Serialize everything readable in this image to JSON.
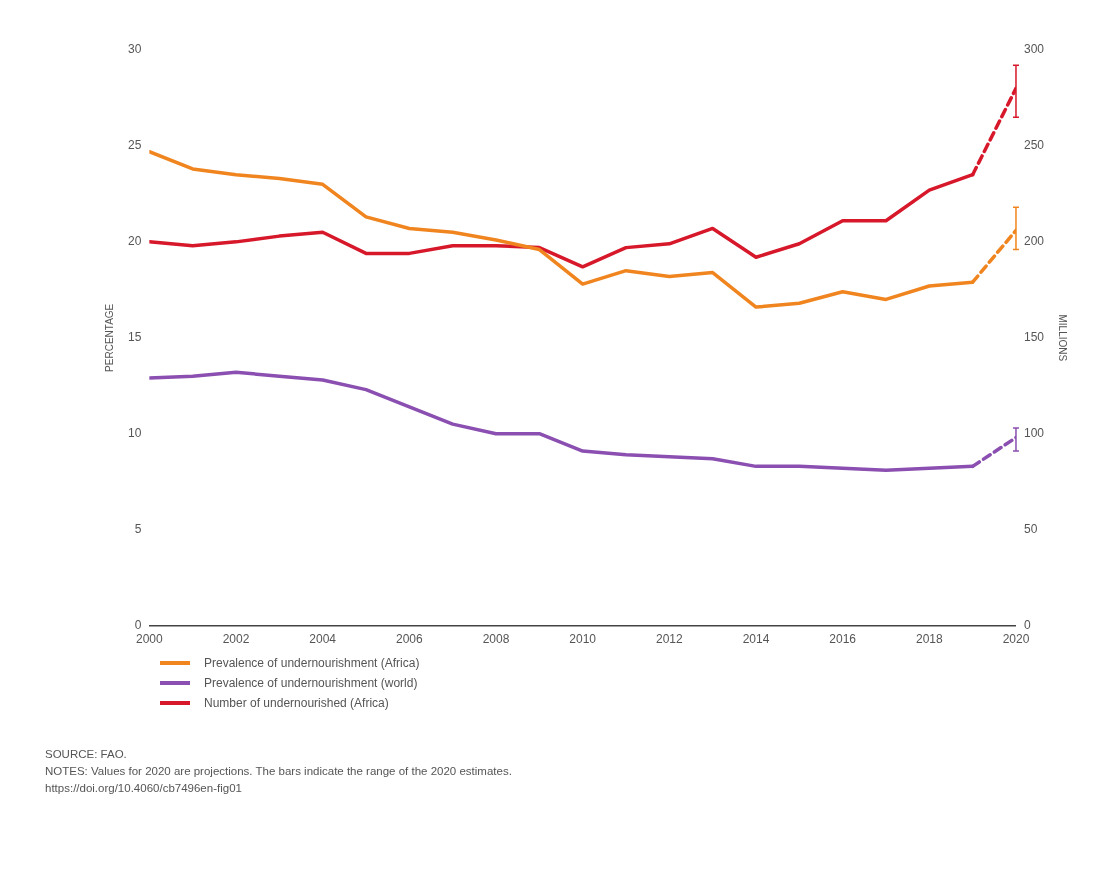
{
  "chart_data": {
    "type": "line",
    "ylabel": "PERCENTAGE",
    "y2label": "MILLIONS",
    "xlim": [
      2000,
      2020
    ],
    "xticks": [
      2000,
      2002,
      2004,
      2006,
      2008,
      2010,
      2012,
      2014,
      2016,
      2018,
      2020
    ],
    "ylim": [
      0,
      30
    ],
    "yticks": [
      0,
      5,
      10,
      15,
      20,
      25,
      30
    ],
    "y2lim": [
      0,
      300
    ],
    "y2ticks": [
      0,
      50,
      100,
      150,
      200,
      250,
      300
    ],
    "grid": false,
    "legend": "bottom left",
    "marker": "none",
    "x": [
      2000,
      2001,
      2002,
      2003,
      2004,
      2005,
      2006,
      2007,
      2008,
      2009,
      2010,
      2011,
      2012,
      2013,
      2014,
      2015,
      2016,
      2017,
      2018,
      2019,
      2020
    ],
    "series": [
      {
        "name": "Prevalence of undernourishment (Africa)",
        "color": "#f0851f",
        "values": [
          24.7,
          23.8,
          23.5,
          23.3,
          23.0,
          21.3,
          20.7,
          20.5,
          20.1,
          19.6,
          17.8,
          18.5,
          18.2,
          18.4,
          16.6,
          16.8,
          17.4,
          17.0,
          17.7,
          17.9,
          null
        ]
      },
      {
        "name": "Prevalence of undernourishment (world)",
        "color": "#8a4fb0",
        "values": [
          12.9,
          13.0,
          13.2,
          13.0,
          12.8,
          12.3,
          11.4,
          10.5,
          10.0,
          10.0,
          9.1,
          8.9,
          8.8,
          8.7,
          8.3,
          8.3,
          8.2,
          8.1,
          8.2,
          8.3,
          null
        ]
      },
      {
        "name": "Number of undernourished (Africa)",
        "color": "#d7182a",
        "axis": "y2",
        "values": [
          200,
          198,
          200,
          203,
          205,
          194,
          194,
          198,
          198,
          197,
          187,
          197,
          199,
          207,
          192,
          199,
          211,
          211,
          227,
          235,
          null
        ]
      },
      {
        "color": "#f0851f",
        "line_style": "dashed",
        "values": [
          null,
          null,
          null,
          null,
          null,
          null,
          null,
          null,
          null,
          null,
          null,
          null,
          null,
          null,
          null,
          null,
          null,
          null,
          null,
          17.9,
          20.6
        ],
        "errors": [
          null,
          null,
          null,
          null,
          null,
          null,
          null,
          null,
          null,
          null,
          null,
          null,
          null,
          null,
          null,
          null,
          null,
          null,
          null,
          null,
          [
            19.6,
            21.8
          ]
        ]
      },
      {
        "color": "#8a4fb0",
        "line_style": "dashed",
        "values": [
          null,
          null,
          null,
          null,
          null,
          null,
          null,
          null,
          null,
          null,
          null,
          null,
          null,
          null,
          null,
          null,
          null,
          null,
          null,
          8.3,
          9.8
        ],
        "errors": [
          null,
          null,
          null,
          null,
          null,
          null,
          null,
          null,
          null,
          null,
          null,
          null,
          null,
          null,
          null,
          null,
          null,
          null,
          null,
          null,
          [
            9.1,
            10.3
          ]
        ]
      },
      {
        "color": "#d7182a",
        "line_style": "dashed",
        "axis": "y2",
        "values": [
          null,
          null,
          null,
          null,
          null,
          null,
          null,
          null,
          null,
          null,
          null,
          null,
          null,
          null,
          null,
          null,
          null,
          null,
          null,
          235,
          280
        ],
        "errors": [
          null,
          null,
          null,
          null,
          null,
          null,
          null,
          null,
          null,
          null,
          null,
          null,
          null,
          null,
          null,
          null,
          null,
          null,
          null,
          null,
          [
            265,
            292
          ]
        ]
      }
    ],
    "annotations": [
      "SOURCE: FAO.",
      "NOTES: Values for 2020 are projections. The bars indicate the range of the 2020 estimates.",
      "https://doi.org/10.4060/cb7496en-fig01"
    ]
  }
}
